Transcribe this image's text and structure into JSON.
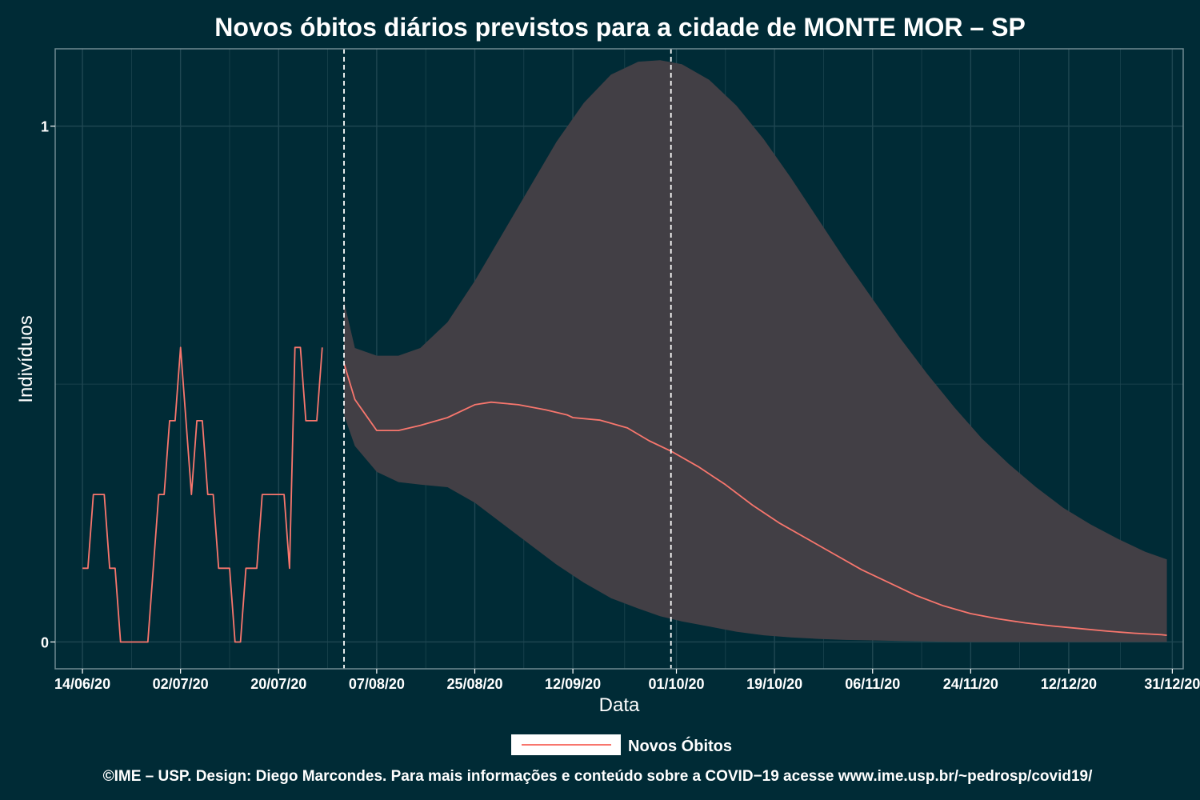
{
  "chart_data": {
    "type": "line",
    "title": "Novos óbitos diários previstos para a cidade de MONTE MOR – SP",
    "xlabel": "Data",
    "ylabel": "Indivíduos",
    "x_range": [
      "2020-06-09",
      "2021-01-02"
    ],
    "ylim": [
      -0.052,
      1.15
    ],
    "y_ticks": [
      0,
      1
    ],
    "x_ticks": [
      {
        "date": "2020-06-14",
        "label": "14/06/20"
      },
      {
        "date": "2020-07-02",
        "label": "02/07/20"
      },
      {
        "date": "2020-07-20",
        "label": "20/07/20"
      },
      {
        "date": "2020-08-07",
        "label": "07/08/20"
      },
      {
        "date": "2020-08-25",
        "label": "25/08/20"
      },
      {
        "date": "2020-09-12",
        "label": "12/09/20"
      },
      {
        "date": "2020-10-01",
        "label": "01/10/20"
      },
      {
        "date": "2020-10-19",
        "label": "19/10/20"
      },
      {
        "date": "2020-11-06",
        "label": "06/11/20"
      },
      {
        "date": "2020-11-24",
        "label": "24/11/20"
      },
      {
        "date": "2020-12-12",
        "label": "12/12/20"
      },
      {
        "date": "2020-12-31",
        "label": "31/12/20"
      }
    ],
    "vlines": [
      "2020-08-01",
      "2020-09-30"
    ],
    "grid": true,
    "legend_position": "bottom",
    "series": [
      {
        "name": "Novos Óbitos",
        "color": "#f8766d",
        "points": [
          [
            "2020-06-14",
            0.143
          ],
          [
            "2020-06-15",
            0.143
          ],
          [
            "2020-06-16",
            0.286
          ],
          [
            "2020-06-17",
            0.286
          ],
          [
            "2020-06-18",
            0.286
          ],
          [
            "2020-06-19",
            0.143
          ],
          [
            "2020-06-20",
            0.143
          ],
          [
            "2020-06-21",
            0.0
          ],
          [
            "2020-06-22",
            0.0
          ],
          [
            "2020-06-23",
            0.0
          ],
          [
            "2020-06-24",
            0.0
          ],
          [
            "2020-06-25",
            0.0
          ],
          [
            "2020-06-26",
            0.0
          ],
          [
            "2020-06-27",
            0.143
          ],
          [
            "2020-06-28",
            0.286
          ],
          [
            "2020-06-29",
            0.286
          ],
          [
            "2020-06-30",
            0.429
          ],
          [
            "2020-07-01",
            0.429
          ],
          [
            "2020-07-02",
            0.571
          ],
          [
            "2020-07-03",
            0.429
          ],
          [
            "2020-07-04",
            0.286
          ],
          [
            "2020-07-05",
            0.429
          ],
          [
            "2020-07-06",
            0.429
          ],
          [
            "2020-07-07",
            0.286
          ],
          [
            "2020-07-08",
            0.286
          ],
          [
            "2020-07-09",
            0.143
          ],
          [
            "2020-07-10",
            0.143
          ],
          [
            "2020-07-11",
            0.143
          ],
          [
            "2020-07-12",
            0.0
          ],
          [
            "2020-07-13",
            0.0
          ],
          [
            "2020-07-14",
            0.143
          ],
          [
            "2020-07-15",
            0.143
          ],
          [
            "2020-07-16",
            0.143
          ],
          [
            "2020-07-17",
            0.286
          ],
          [
            "2020-07-18",
            0.286
          ],
          [
            "2020-07-19",
            0.286
          ],
          [
            "2020-07-20",
            0.286
          ],
          [
            "2020-07-21",
            0.286
          ],
          [
            "2020-07-22",
            0.143
          ],
          [
            "2020-07-23",
            0.571
          ],
          [
            "2020-07-24",
            0.571
          ],
          [
            "2020-07-25",
            0.429
          ],
          [
            "2020-07-26",
            0.429
          ],
          [
            "2020-07-27",
            0.429
          ],
          [
            "2020-07-28",
            0.571
          ],
          [
            "2020-08-01",
            0.54
          ],
          [
            "2020-08-03",
            0.47
          ],
          [
            "2020-08-05",
            0.44
          ],
          [
            "2020-08-07",
            0.41
          ],
          [
            "2020-08-09",
            0.41
          ],
          [
            "2020-08-11",
            0.41
          ],
          [
            "2020-08-15",
            0.42
          ],
          [
            "2020-08-20",
            0.435
          ],
          [
            "2020-08-25",
            0.46
          ],
          [
            "2020-08-28",
            0.465
          ],
          [
            "2020-09-02",
            0.46
          ],
          [
            "2020-09-07",
            0.45
          ],
          [
            "2020-09-11",
            0.44
          ],
          [
            "2020-09-12",
            0.435
          ],
          [
            "2020-09-17",
            0.43
          ],
          [
            "2020-09-22",
            0.415
          ],
          [
            "2020-09-26",
            0.39
          ],
          [
            "2020-09-30",
            0.37
          ],
          [
            "2020-10-05",
            0.34
          ],
          [
            "2020-10-10",
            0.305
          ],
          [
            "2020-10-15",
            0.265
          ],
          [
            "2020-10-20",
            0.23
          ],
          [
            "2020-10-25",
            0.2
          ],
          [
            "2020-10-30",
            0.17
          ],
          [
            "2020-11-04",
            0.14
          ],
          [
            "2020-11-09",
            0.115
          ],
          [
            "2020-11-14",
            0.09
          ],
          [
            "2020-11-19",
            0.07
          ],
          [
            "2020-11-24",
            0.055
          ],
          [
            "2020-11-29",
            0.045
          ],
          [
            "2020-12-04",
            0.037
          ],
          [
            "2020-12-09",
            0.031
          ],
          [
            "2020-12-14",
            0.026
          ],
          [
            "2020-12-19",
            0.021
          ],
          [
            "2020-12-24",
            0.017
          ],
          [
            "2020-12-29",
            0.014
          ],
          [
            "2020-12-30",
            0.013
          ]
        ]
      }
    ],
    "ribbon": {
      "color": "#423f45",
      "points": [
        [
          "2020-08-01",
          0.66,
          0.44
        ],
        [
          "2020-08-03",
          0.57,
          0.38
        ],
        [
          "2020-08-07",
          0.555,
          0.33
        ],
        [
          "2020-08-11",
          0.555,
          0.31
        ],
        [
          "2020-08-15",
          0.57,
          0.305
        ],
        [
          "2020-08-20",
          0.62,
          0.3
        ],
        [
          "2020-08-25",
          0.7,
          0.27
        ],
        [
          "2020-08-30",
          0.79,
          0.23
        ],
        [
          "2020-09-04",
          0.88,
          0.19
        ],
        [
          "2020-09-09",
          0.97,
          0.15
        ],
        [
          "2020-09-14",
          1.045,
          0.115
        ],
        [
          "2020-09-19",
          1.1,
          0.085
        ],
        [
          "2020-09-24",
          1.125,
          0.065
        ],
        [
          "2020-09-28",
          1.128,
          0.05
        ],
        [
          "2020-10-02",
          1.12,
          0.04
        ],
        [
          "2020-10-07",
          1.09,
          0.03
        ],
        [
          "2020-10-12",
          1.04,
          0.02
        ],
        [
          "2020-10-17",
          0.975,
          0.013
        ],
        [
          "2020-10-22",
          0.9,
          0.009
        ],
        [
          "2020-10-27",
          0.82,
          0.006
        ],
        [
          "2020-11-01",
          0.74,
          0.004
        ],
        [
          "2020-11-06",
          0.665,
          0.003
        ],
        [
          "2020-11-11",
          0.59,
          0.002
        ],
        [
          "2020-11-16",
          0.52,
          0.001
        ],
        [
          "2020-11-21",
          0.455,
          0.0
        ],
        [
          "2020-11-26",
          0.395,
          0.0
        ],
        [
          "2020-12-01",
          0.345,
          0.0
        ],
        [
          "2020-12-06",
          0.3,
          0.0
        ],
        [
          "2020-12-11",
          0.26,
          0.0
        ],
        [
          "2020-12-16",
          0.228,
          0.0
        ],
        [
          "2020-12-21",
          0.2,
          0.0
        ],
        [
          "2020-12-26",
          0.175,
          0.0
        ],
        [
          "2020-12-30",
          0.16,
          0.0
        ]
      ]
    }
  },
  "legend": {
    "label": "Novos Óbitos"
  },
  "footer": {
    "text": "©IME – USP. Design: Diego Marcondes. Para mais informações e conteúdo sobre a COVID−19 acesse www.ime.usp.br/~pedrosp/covid19/"
  },
  "colors": {
    "background": "#002b36",
    "ribbon": "#423f45",
    "line": "#f8766d",
    "grid": "#1f4752",
    "panel_border": "#6f8a90",
    "vline": "#ffffff"
  }
}
